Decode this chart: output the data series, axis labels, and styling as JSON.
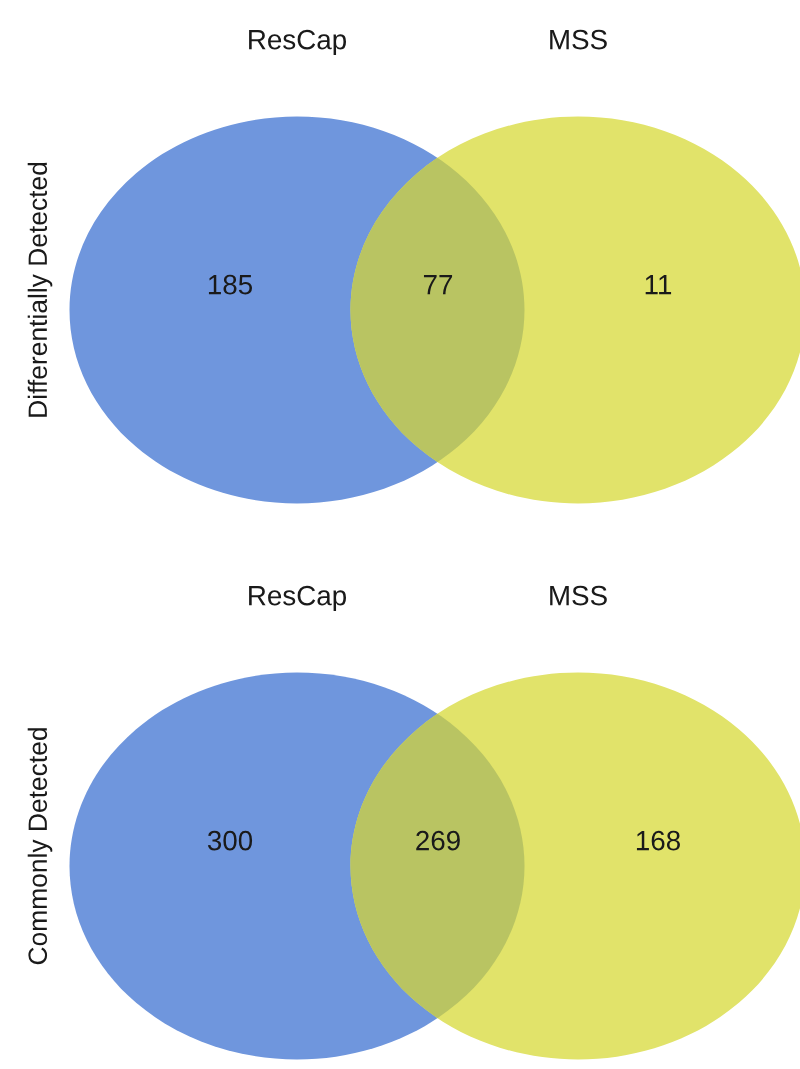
{
  "chart_data": [
    {
      "type": "other",
      "ylabel": "Differentially Detected",
      "categories": [
        "ResCap",
        null,
        "MSS"
      ],
      "values": [
        185,
        77,
        11
      ],
      "colors": [
        "#6f96dd",
        "#b9c462",
        "#e1e36a"
      ],
      "data_labels": true
    },
    {
      "type": "other",
      "ylabel": "Commonly Detected",
      "categories": [
        "ResCap",
        null,
        "MSS"
      ],
      "values": [
        300,
        269,
        168
      ],
      "colors": [
        "#6f96dd",
        "#b9c462",
        "#e1e36a"
      ],
      "data_labels": true
    }
  ]
}
